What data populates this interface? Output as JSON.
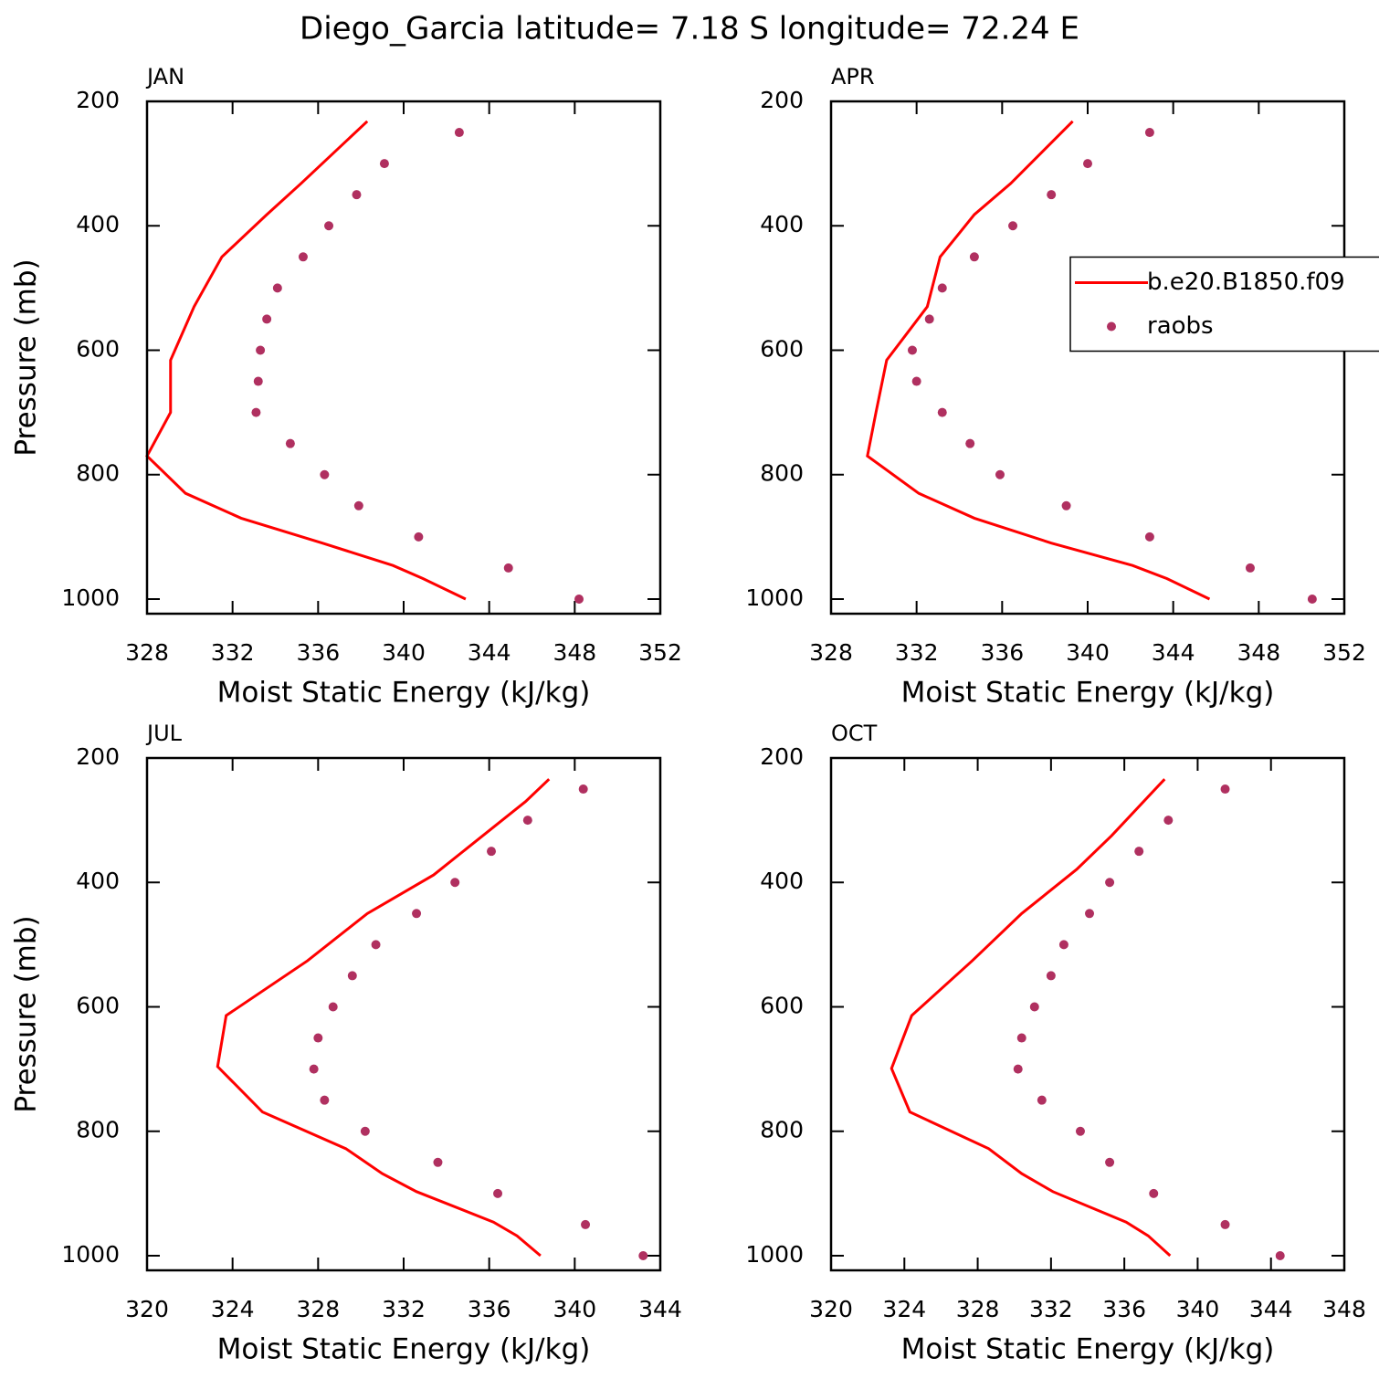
{
  "title": "Diego_Garcia  latitude= 7.18 S longitude= 72.24 E",
  "chart_data": [
    {
      "type": "line",
      "title": "JAN",
      "xlabel": "Moist Static Energy (kJ/kg)",
      "ylabel": "Pressure (mb)",
      "xlim": [
        328,
        352
      ],
      "xticks": [
        328,
        332,
        336,
        340,
        344,
        348,
        352
      ],
      "ylim": [
        1023.5,
        200
      ],
      "yticks": [
        200,
        400,
        600,
        800,
        1000
      ],
      "series": [
        {
          "name": "b.e20.B1850.f09",
          "mode": "line",
          "color": "#ff0000",
          "x": [
            338.3,
            335.2,
            333.6,
            331.5,
            330.2,
            329.1,
            329.1,
            328.0,
            329.8,
            332.4,
            336.2,
            339.5,
            340.9,
            342.9
          ],
          "y": [
            232,
            332,
            382,
            450,
            530,
            616,
            700,
            770,
            830,
            870,
            910,
            946,
            967,
            1000
          ]
        },
        {
          "name": "raobs",
          "mode": "marker",
          "color": "#b03060",
          "x": [
            342.6,
            339.1,
            337.8,
            336.5,
            335.3,
            334.1,
            333.6,
            333.3,
            333.2,
            333.1,
            334.7,
            336.3,
            337.9,
            340.7,
            344.9,
            348.2
          ],
          "y": [
            250,
            300,
            350,
            400,
            450,
            500,
            550,
            600,
            650,
            700,
            750,
            800,
            850,
            900,
            950,
            1000
          ]
        }
      ]
    },
    {
      "type": "line",
      "title": "APR",
      "xlabel": "Moist Static Energy (kJ/kg)",
      "legend": "center-right",
      "xlim": [
        328,
        352
      ],
      "xticks": [
        328,
        332,
        336,
        340,
        344,
        348,
        352
      ],
      "ylim": [
        1023.5,
        200
      ],
      "yticks": [
        200,
        400,
        600,
        800,
        1000
      ],
      "series": [
        {
          "name": "b.e20.B1850.f09",
          "mode": "line",
          "color": "#ff0000",
          "x": [
            339.3,
            336.4,
            334.7,
            333.1,
            332.5,
            330.6,
            330.1,
            329.7,
            332.1,
            334.7,
            338.3,
            342.1,
            343.7,
            345.7
          ],
          "y": [
            232,
            332,
            382,
            450,
            530,
            616,
            700,
            770,
            830,
            870,
            910,
            946,
            967,
            1000
          ]
        },
        {
          "name": "raobs",
          "mode": "marker",
          "color": "#b03060",
          "x": [
            342.9,
            340.0,
            338.3,
            336.5,
            334.7,
            333.2,
            332.6,
            331.8,
            332.0,
            333.2,
            334.5,
            335.9,
            339.0,
            342.9,
            347.6,
            350.5
          ],
          "y": [
            250,
            300,
            350,
            400,
            450,
            500,
            550,
            600,
            650,
            700,
            750,
            800,
            850,
            900,
            950,
            1000
          ]
        }
      ]
    },
    {
      "type": "line",
      "title": "JUL",
      "xlabel": "Moist Static Energy (kJ/kg)",
      "ylabel": "Pressure (mb)",
      "xlim": [
        320,
        344
      ],
      "xticks": [
        320,
        324,
        328,
        332,
        336,
        340,
        344
      ],
      "ylim": [
        1023.5,
        200
      ],
      "yticks": [
        200,
        400,
        600,
        800,
        1000
      ],
      "series": [
        {
          "name": "b.e20.B1850.f09",
          "mode": "line",
          "color": "#ff0000",
          "x": [
            338.8,
            337.7,
            333.4,
            330.3,
            327.5,
            323.7,
            323.3,
            325.4,
            329.3,
            331.0,
            332.6,
            336.2,
            337.3,
            338.4
          ],
          "y": [
            234,
            270,
            388,
            450,
            526,
            614,
            696,
            769,
            828,
            868,
            897,
            946,
            968,
            1000
          ]
        },
        {
          "name": "raobs",
          "mode": "marker",
          "color": "#b03060",
          "x": [
            340.4,
            337.8,
            336.1,
            334.4,
            332.6,
            330.7,
            329.6,
            328.7,
            328.0,
            327.8,
            328.3,
            330.2,
            333.6,
            336.4,
            340.5,
            343.2
          ],
          "y": [
            250,
            300,
            350,
            400,
            450,
            500,
            550,
            600,
            650,
            700,
            750,
            800,
            850,
            900,
            950,
            1000
          ]
        }
      ]
    },
    {
      "type": "line",
      "title": "OCT",
      "xlabel": "Moist Static Energy (kJ/kg)",
      "xlim": [
        320,
        348
      ],
      "xticks": [
        320,
        324,
        328,
        332,
        336,
        340,
        344,
        348
      ],
      "ylim": [
        1023.5,
        200
      ],
      "yticks": [
        200,
        400,
        600,
        800,
        1000
      ],
      "series": [
        {
          "name": "b.e20.B1850.f09",
          "mode": "line",
          "color": "#ff0000",
          "x": [
            338.2,
            335.3,
            333.4,
            330.4,
            327.7,
            324.4,
            323.3,
            324.3,
            328.6,
            330.4,
            332.1,
            336.1,
            337.3,
            338.5
          ],
          "y": [
            234,
            325,
            379,
            450,
            526,
            614,
            699,
            769,
            828,
            868,
            897,
            946,
            968,
            1000
          ]
        },
        {
          "name": "raobs",
          "mode": "marker",
          "color": "#b03060",
          "x": [
            341.5,
            338.4,
            336.8,
            335.2,
            334.1,
            332.7,
            332.0,
            331.1,
            330.4,
            330.2,
            331.5,
            333.6,
            335.2,
            337.6,
            341.5,
            344.5
          ],
          "y": [
            250,
            300,
            350,
            400,
            450,
            500,
            550,
            600,
            650,
            700,
            750,
            800,
            850,
            900,
            950,
            1000
          ]
        }
      ]
    }
  ]
}
